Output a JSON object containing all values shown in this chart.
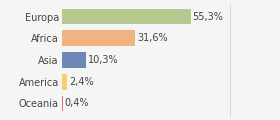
{
  "categories": [
    "Europa",
    "Africa",
    "Asia",
    "America",
    "Oceania"
  ],
  "values": [
    55.3,
    31.6,
    10.3,
    2.4,
    0.4
  ],
  "labels": [
    "55,3%",
    "31,6%",
    "10,3%",
    "2,4%",
    "0,4%"
  ],
  "bar_colors": [
    "#b5c98e",
    "#f0b482",
    "#6e86b8",
    "#f5d06e",
    "#e87070"
  ],
  "background_color": "#f5f5f5",
  "label_fontsize": 7.0,
  "tick_fontsize": 7.0,
  "xlim": 72,
  "bar_height": 0.72
}
